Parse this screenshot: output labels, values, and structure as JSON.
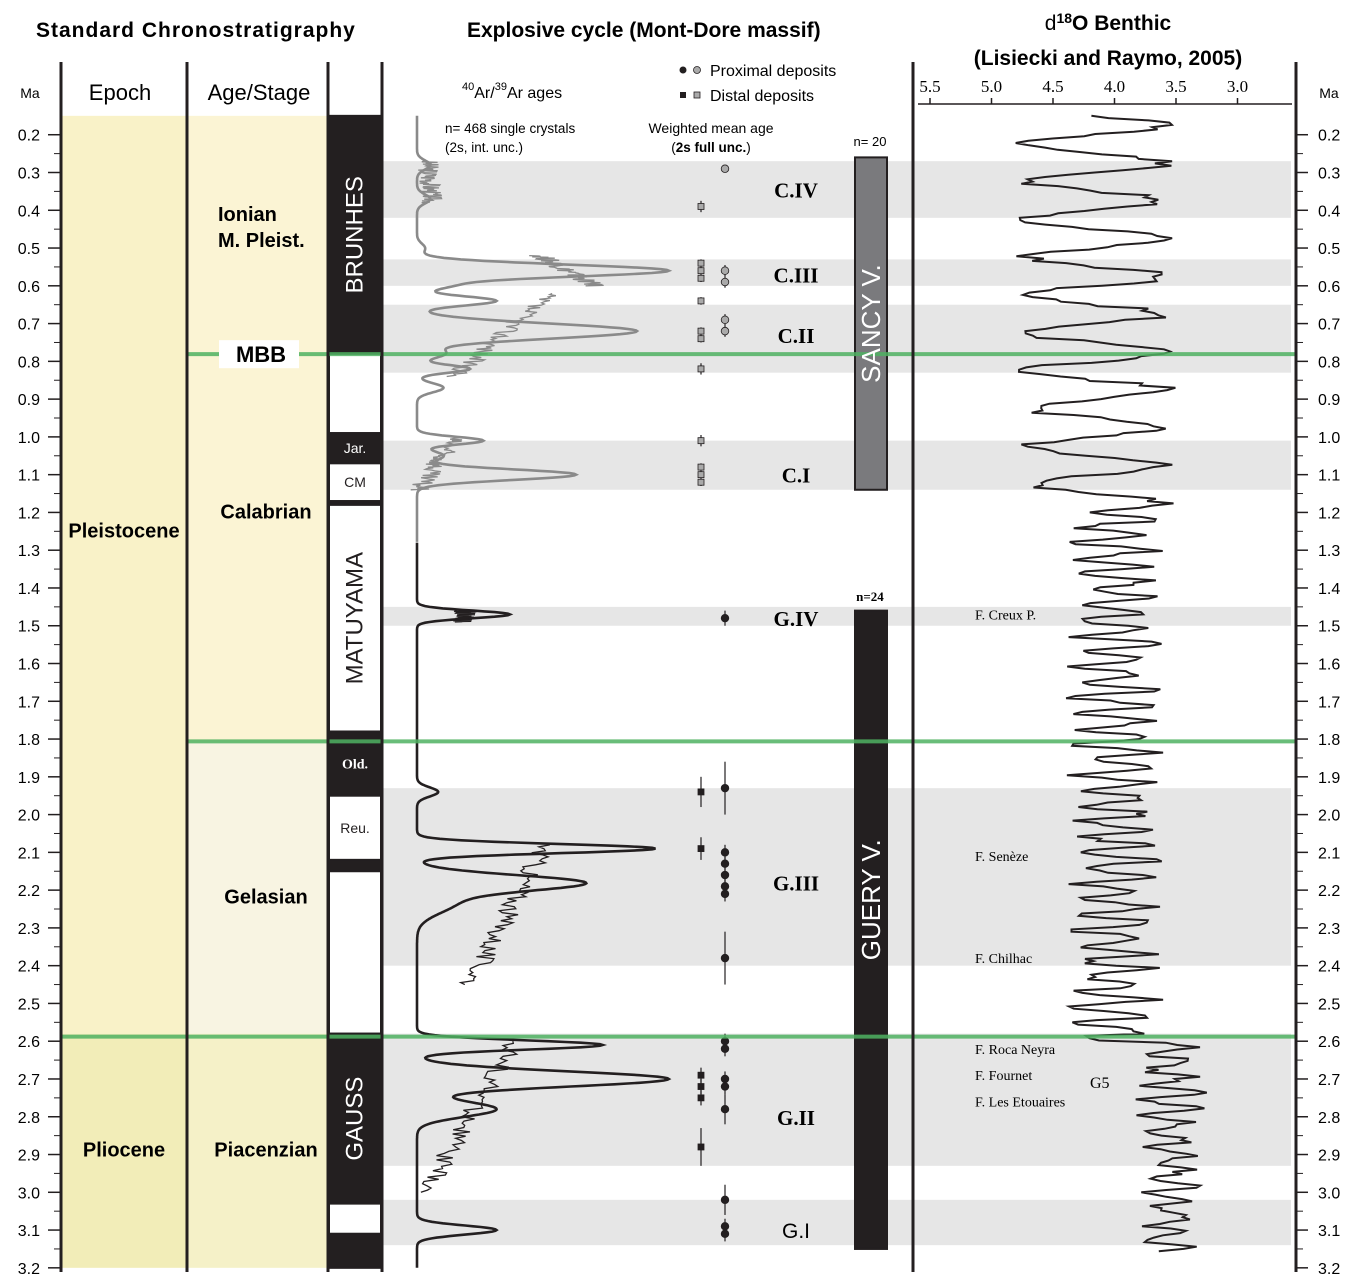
{
  "headers": {
    "standard": "Standard Chronostratigraphy",
    "explosive": "Explosive cycle (Mont-Dore massif)",
    "d18o_prefix": "d",
    "d18o_sup": "18",
    "d18o_rest": "O Benthic",
    "d18o_ref": "(Lisiecki and Raymo, 2005)"
  },
  "columns": {
    "ma_left": "Ma",
    "ma_right": "Ma",
    "epoch": "Epoch",
    "age_stage": "Age/Stage"
  },
  "legend": {
    "proximal": "Proximal deposits",
    "distal": "Distal deposits"
  },
  "ar_label": {
    "sup1": "40",
    "mid": "Ar/",
    "sup2": "39",
    "end": "Ar ages"
  },
  "annotations": {
    "n_single": "n= 468 single crystals",
    "unc_int": "(2s, int. unc.)",
    "weighted": "Weighted mean age",
    "unc_full_pre": "(",
    "unc_full_bold": "2s full unc.",
    "unc_full_post": ")",
    "n_sancy": "n= 20",
    "n_guery": "n=24",
    "g5": "G5"
  },
  "chart_data": {
    "type": "stratigraphic-column",
    "y_axis": {
      "label": "Ma",
      "range": [
        0.15,
        3.2
      ],
      "ticks": [
        "0.2",
        "0.3",
        "0.4",
        "0.5",
        "0.6",
        "0.7",
        "0.8",
        "0.9",
        "1.0",
        "1.1",
        "1.2",
        "1.3",
        "1.4",
        "1.5",
        "1.6",
        "1.7",
        "1.8",
        "1.9",
        "2.0",
        "2.1",
        "2.2",
        "2.3",
        "2.4",
        "2.5",
        "2.6",
        "2.7",
        "2.8",
        "2.9",
        "3.0",
        "3.1",
        "3.2"
      ]
    },
    "d18o_axis": {
      "ticks": [
        "5.5",
        "5.0",
        "4.5",
        "4.0",
        "3.5",
        "3.0"
      ],
      "range": [
        5.5,
        2.9
      ],
      "reversed": true
    },
    "epochs": [
      {
        "name": "Pleistocene",
        "top": 0.15,
        "bottom": 2.58,
        "color": "#f9f2c8"
      },
      {
        "name": "Pliocene",
        "top": 2.58,
        "bottom": 3.2,
        "color": "#f2edb8"
      }
    ],
    "stages": [
      {
        "name": "Ionian",
        "name2": "M. Pleist.",
        "top": 0.15,
        "bottom": 0.78,
        "label_age": 0.45,
        "color": "#fbf4d4"
      },
      {
        "name": "Calabrian",
        "top": 0.78,
        "bottom": 1.81,
        "label_age": 1.2,
        "color": "#fbf4d4"
      },
      {
        "name": "Gelasian",
        "top": 1.81,
        "bottom": 2.58,
        "label_age": 2.22,
        "color": "#f8f4e2"
      },
      {
        "name": "Piacenzian",
        "top": 2.58,
        "bottom": 3.2,
        "label_age": 2.89,
        "color": "#f5f1c8"
      }
    ],
    "magnetic_polarity": [
      {
        "top": 0.15,
        "bottom": 0.78,
        "polarity": "normal",
        "label": "BRUNHES",
        "rotated": true
      },
      {
        "top": 0.78,
        "bottom": 0.99,
        "polarity": "reversed",
        "label": ""
      },
      {
        "top": 0.99,
        "bottom": 1.07,
        "polarity": "normal",
        "label": "Jar."
      },
      {
        "top": 1.07,
        "bottom": 1.17,
        "polarity": "reversed",
        "label": "CM"
      },
      {
        "top": 1.17,
        "bottom": 1.18,
        "polarity": "normal",
        "label": ""
      },
      {
        "top": 1.18,
        "bottom": 1.78,
        "polarity": "reversed",
        "label": "MATUYAMA",
        "rotated": true
      },
      {
        "top": 1.78,
        "bottom": 1.95,
        "polarity": "normal",
        "label": "Old."
      },
      {
        "top": 1.95,
        "bottom": 2.12,
        "polarity": "reversed",
        "label": "Reu."
      },
      {
        "top": 2.12,
        "bottom": 2.15,
        "polarity": "normal",
        "label": ""
      },
      {
        "top": 2.15,
        "bottom": 2.58,
        "polarity": "reversed",
        "label": ""
      },
      {
        "top": 2.58,
        "bottom": 3.03,
        "polarity": "normal",
        "label": "GAUSS",
        "rotated": true
      },
      {
        "top": 3.03,
        "bottom": 3.11,
        "polarity": "reversed",
        "label": ""
      },
      {
        "top": 3.11,
        "bottom": 3.2,
        "polarity": "normal",
        "label": ""
      }
    ],
    "boundaries": [
      {
        "age": 0.781,
        "label": "MBB"
      },
      {
        "age": 1.806,
        "label": ""
      },
      {
        "age": 2.588,
        "label": ""
      }
    ],
    "cycles": [
      {
        "name": "C.IV",
        "top": 0.27,
        "bottom": 0.42,
        "label_age": 0.345
      },
      {
        "name": "C.III",
        "top": 0.53,
        "bottom": 0.6,
        "label_age": 0.57
      },
      {
        "name": "C.II",
        "top": 0.65,
        "bottom": 0.83,
        "label_age": 0.73
      },
      {
        "name": "C.I",
        "top": 1.01,
        "bottom": 1.14,
        "label_age": 1.1
      },
      {
        "name": "G.IV",
        "top": 1.45,
        "bottom": 1.5,
        "label_age": 1.48
      },
      {
        "name": "G.III",
        "top": 1.93,
        "bottom": 2.4,
        "label_age": 2.18
      },
      {
        "name": "G.II",
        "top": 2.58,
        "bottom": 2.93,
        "label_age": 2.8
      },
      {
        "name": "G.I",
        "top": 3.02,
        "bottom": 3.14,
        "label_age": 3.1
      }
    ],
    "volcanoes": [
      {
        "name": "SANCY V.",
        "top": 0.26,
        "bottom": 1.14,
        "color": "#7a7a7d",
        "count": "n= 20"
      },
      {
        "name": "GUERY V.",
        "top": 1.46,
        "bottom": 3.15,
        "color": "#231f20",
        "count": "n=24"
      }
    ],
    "proximal_ages": [
      {
        "age": 0.29,
        "err": 0.0,
        "gray": true
      },
      {
        "age": 0.56,
        "err": 0.015,
        "gray": true
      },
      {
        "age": 0.59,
        "err": 0.015,
        "gray": true
      },
      {
        "age": 0.69,
        "err": 0.015,
        "gray": true
      },
      {
        "age": 0.72,
        "err": 0.015,
        "gray": true
      },
      {
        "age": 1.48,
        "err": 0.02,
        "gray": false
      },
      {
        "age": 1.93,
        "err": 0.07,
        "gray": false
      },
      {
        "age": 2.1,
        "err": 0.02,
        "gray": false
      },
      {
        "age": 2.13,
        "err": 0.02,
        "gray": false
      },
      {
        "age": 2.16,
        "err": 0.02,
        "gray": false
      },
      {
        "age": 2.19,
        "err": 0.02,
        "gray": false
      },
      {
        "age": 2.21,
        "err": 0.02,
        "gray": false
      },
      {
        "age": 2.38,
        "err": 0.07,
        "gray": false
      },
      {
        "age": 2.6,
        "err": 0.02,
        "gray": false
      },
      {
        "age": 2.62,
        "err": 0.02,
        "gray": false
      },
      {
        "age": 2.7,
        "err": 0.02,
        "gray": false
      },
      {
        "age": 2.72,
        "err": 0.02,
        "gray": false
      },
      {
        "age": 2.78,
        "err": 0.04,
        "gray": false
      },
      {
        "age": 3.02,
        "err": 0.04,
        "gray": false
      },
      {
        "age": 3.09,
        "err": 0.02,
        "gray": false
      },
      {
        "age": 3.11,
        "err": 0.02,
        "gray": false
      }
    ],
    "distal_ages": [
      {
        "age": 0.39,
        "err": 0.015,
        "gray": true
      },
      {
        "age": 0.54,
        "err": 0.01,
        "gray": true
      },
      {
        "age": 0.56,
        "err": 0.01,
        "gray": true
      },
      {
        "age": 0.58,
        "err": 0.01,
        "gray": true
      },
      {
        "age": 0.64,
        "err": 0.01,
        "gray": true
      },
      {
        "age": 0.72,
        "err": 0.01,
        "gray": true
      },
      {
        "age": 0.74,
        "err": 0.01,
        "gray": true
      },
      {
        "age": 0.82,
        "err": 0.015,
        "gray": true
      },
      {
        "age": 1.01,
        "err": 0.015,
        "gray": true
      },
      {
        "age": 1.08,
        "err": 0.01,
        "gray": true
      },
      {
        "age": 1.1,
        "err": 0.01,
        "gray": true
      },
      {
        "age": 1.12,
        "err": 0.01,
        "gray": true
      },
      {
        "age": 1.94,
        "err": 0.04,
        "gray": false
      },
      {
        "age": 2.09,
        "err": 0.03,
        "gray": false
      },
      {
        "age": 2.69,
        "err": 0.02,
        "gray": false
      },
      {
        "age": 2.72,
        "err": 0.02,
        "gray": false
      },
      {
        "age": 2.75,
        "err": 0.02,
        "gray": false
      },
      {
        "age": 2.88,
        "err": 0.05,
        "gray": false
      }
    ],
    "probability_curves": [
      {
        "color": "#8a8a8a",
        "baseline": 0.0,
        "range": [
          0.15,
          1.28
        ],
        "peaks": [
          {
            "age": 0.28,
            "amp": 0.05,
            "w": 0.012
          },
          {
            "age": 0.37,
            "amp": 0.05,
            "w": 0.012
          },
          {
            "age": 0.5,
            "amp": 0.03,
            "w": 0.012
          },
          {
            "age": 0.56,
            "amp": 0.95,
            "w": 0.016
          },
          {
            "age": 0.6,
            "amp": 0.1,
            "w": 0.01
          },
          {
            "age": 0.64,
            "amp": 0.3,
            "w": 0.012
          },
          {
            "age": 0.72,
            "amp": 0.83,
            "w": 0.02
          },
          {
            "age": 0.78,
            "amp": 0.1,
            "w": 0.012
          },
          {
            "age": 0.82,
            "amp": 0.2,
            "w": 0.01
          },
          {
            "age": 0.87,
            "amp": 0.1,
            "w": 0.012
          },
          {
            "age": 1.01,
            "amp": 0.25,
            "w": 0.01
          },
          {
            "age": 1.05,
            "amp": 0.1,
            "w": 0.012
          },
          {
            "age": 1.1,
            "amp": 0.6,
            "w": 0.014
          }
        ]
      },
      {
        "color": "#231f20",
        "baseline": 0.0,
        "range": [
          1.28,
          3.2
        ],
        "peaks": [
          {
            "age": 1.47,
            "amp": 0.35,
            "w": 0.01
          },
          {
            "age": 1.94,
            "amp": 0.08,
            "w": 0.012
          },
          {
            "age": 2.09,
            "amp": 0.9,
            "w": 0.012
          },
          {
            "age": 2.18,
            "amp": 0.6,
            "w": 0.02
          },
          {
            "age": 2.23,
            "amp": 0.15,
            "w": 0.03
          },
          {
            "age": 2.61,
            "amp": 0.7,
            "w": 0.012
          },
          {
            "age": 2.7,
            "amp": 0.95,
            "w": 0.02
          },
          {
            "age": 2.78,
            "amp": 0.3,
            "w": 0.02
          },
          {
            "age": 3.1,
            "amp": 0.3,
            "w": 0.012
          }
        ]
      }
    ],
    "fauna": [
      {
        "name": "F. Creux P.",
        "age": 1.47
      },
      {
        "name": "F. Senèze",
        "age": 2.11
      },
      {
        "name": "F. Chilhac",
        "age": 2.38
      },
      {
        "name": "F. Roca Neyra",
        "age": 2.62
      },
      {
        "name": "F. Fournet",
        "age": 2.69
      },
      {
        "name": "F. Les Etouaires",
        "age": 2.76
      }
    ]
  },
  "colors": {
    "boundary": "#4fb262",
    "shade": "#e6e6e6",
    "polarity_normal": "#231f20"
  }
}
